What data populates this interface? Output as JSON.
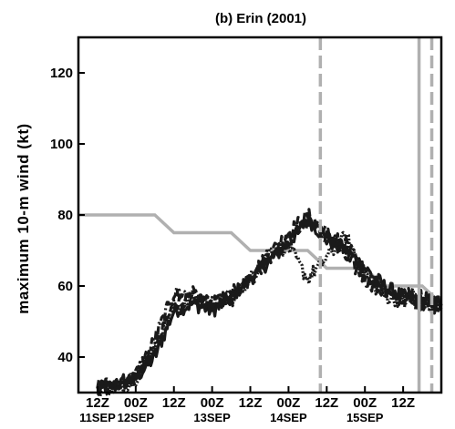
{
  "chart_data": {
    "type": "line",
    "title": "(b) Erin (2001)",
    "ylabel": "maximum 10-m wind (kt)",
    "xlabel": "",
    "ylim": [
      30,
      130
    ],
    "yticks": [
      40,
      60,
      80,
      100,
      120
    ],
    "xlim": [
      "2001-09-11 06Z",
      "2001-09-16 00Z"
    ],
    "x_tick_labels": [
      "12Z",
      "00Z",
      "12Z",
      "00Z",
      "12Z",
      "00Z",
      "12Z",
      "00Z",
      "12Z"
    ],
    "x_ticks": [
      "2001-09-11 12Z",
      "2001-09-12 00Z",
      "2001-09-12 12Z",
      "2001-09-13 00Z",
      "2001-09-13 12Z",
      "2001-09-14 00Z",
      "2001-09-14 12Z",
      "2001-09-15 00Z",
      "2001-09-15 12Z"
    ],
    "date_labels": [
      {
        "text": "11SEP",
        "at": "2001-09-11 12Z"
      },
      {
        "text": "12SEP",
        "at": "2001-09-12 00Z"
      },
      {
        "text": "13SEP",
        "at": "2001-09-13 00Z"
      },
      {
        "text": "14SEP",
        "at": "2001-09-14 00Z"
      },
      {
        "text": "15SEP",
        "at": "2001-09-15 00Z"
      }
    ],
    "grid": false,
    "observed": {
      "color": "#b0b0b0",
      "x": [
        "2001-09-11 06Z",
        "2001-09-12 06Z",
        "2001-09-12 12Z",
        "2001-09-13 06Z",
        "2001-09-13 12Z",
        "2001-09-14 06Z",
        "2001-09-14 12Z",
        "2001-09-15 00Z",
        "2001-09-15 06Z",
        "2001-09-15 18Z",
        "2001-09-16 00Z"
      ],
      "y": [
        80,
        80,
        75,
        75,
        70,
        70,
        65,
        65,
        60,
        60,
        55
      ]
    },
    "series": [
      {
        "style": "solid",
        "color": "#1a1a1a",
        "x": [
          "2001-09-11 12Z",
          "2001-09-11 18Z",
          "2001-09-12 00Z",
          "2001-09-12 06Z",
          "2001-09-12 12Z",
          "2001-09-12 18Z",
          "2001-09-13 00Z",
          "2001-09-13 06Z",
          "2001-09-13 12Z",
          "2001-09-13 18Z",
          "2001-09-14 00Z",
          "2001-09-14 06Z",
          "2001-09-14 12Z",
          "2001-09-14 18Z",
          "2001-09-15 00Z",
          "2001-09-15 06Z",
          "2001-09-15 12Z",
          "2001-09-15 18Z",
          "2001-09-16 00Z"
        ],
        "y": [
          31,
          32,
          34,
          40,
          53,
          55,
          53,
          57,
          62,
          67,
          72,
          79,
          73,
          70,
          65,
          60,
          57,
          56,
          55
        ]
      },
      {
        "style": "dashed",
        "color": "#1a1a1a",
        "x": [
          "2001-09-11 12Z",
          "2001-09-11 18Z",
          "2001-09-12 00Z",
          "2001-09-12 06Z",
          "2001-09-12 12Z",
          "2001-09-12 18Z",
          "2001-09-13 00Z",
          "2001-09-13 06Z",
          "2001-09-13 12Z",
          "2001-09-13 18Z",
          "2001-09-14 00Z",
          "2001-09-14 06Z",
          "2001-09-14 12Z",
          "2001-09-14 18Z",
          "2001-09-15 00Z",
          "2001-09-15 06Z",
          "2001-09-15 12Z",
          "2001-09-15 18Z",
          "2001-09-16 00Z"
        ],
        "y": [
          32,
          33,
          34,
          42,
          55,
          57,
          55,
          56,
          63,
          69,
          75,
          80,
          75,
          68,
          62,
          58,
          56,
          55,
          54
        ]
      },
      {
        "style": "dash-dot",
        "color": "#1a1a1a",
        "x": [
          "2001-09-11 12Z",
          "2001-09-11 18Z",
          "2001-09-12 00Z",
          "2001-09-12 06Z",
          "2001-09-12 12Z",
          "2001-09-12 18Z",
          "2001-09-13 00Z",
          "2001-09-13 06Z",
          "2001-09-13 12Z",
          "2001-09-13 18Z",
          "2001-09-14 00Z",
          "2001-09-14 06Z",
          "2001-09-14 12Z",
          "2001-09-14 18Z",
          "2001-09-15 00Z",
          "2001-09-15 06Z",
          "2001-09-15 12Z",
          "2001-09-15 18Z",
          "2001-09-16 00Z"
        ],
        "y": [
          31,
          32,
          35,
          45,
          58,
          58,
          54,
          58,
          61,
          68,
          73,
          78,
          74,
          72,
          64,
          59,
          58,
          57,
          55
        ]
      },
      {
        "style": "dotted",
        "color": "#1a1a1a",
        "x": [
          "2001-09-11 12Z",
          "2001-09-11 18Z",
          "2001-09-12 00Z",
          "2001-09-12 06Z",
          "2001-09-12 12Z",
          "2001-09-12 18Z",
          "2001-09-13 00Z",
          "2001-09-13 06Z",
          "2001-09-13 12Z",
          "2001-09-13 18Z",
          "2001-09-14 00Z",
          "2001-09-14 06Z",
          "2001-09-14 12Z",
          "2001-09-14 18Z",
          "2001-09-15 00Z",
          "2001-09-15 06Z",
          "2001-09-15 12Z",
          "2001-09-15 18Z",
          "2001-09-16 00Z"
        ],
        "y": [
          31,
          31,
          34,
          43,
          54,
          56,
          55,
          56,
          62,
          70,
          71,
          62,
          68,
          74,
          63,
          57,
          56,
          55,
          54
        ]
      }
    ],
    "vertical_lines": [
      {
        "x": "2001-09-14 10Z",
        "style": "dashed",
        "color": "#b0b0b0"
      },
      {
        "x": "2001-09-15 17Z",
        "style": "solid",
        "color": "#b0b0b0"
      },
      {
        "x": "2001-09-15 21Z",
        "style": "dashed",
        "color": "#b0b0b0"
      }
    ]
  }
}
